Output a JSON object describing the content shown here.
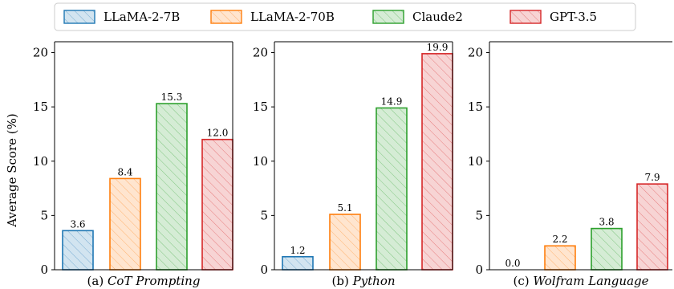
{
  "legend": {
    "placement": "top-center",
    "items": [
      {
        "label": "LLaMA-2-7B",
        "color": "#1f77b4"
      },
      {
        "label": "LLaMA-2-70B",
        "color": "#ff7f0e"
      },
      {
        "label": "Claude2",
        "color": "#2ca02c"
      },
      {
        "label": "GPT-3.5",
        "color": "#d62728"
      }
    ]
  },
  "ylabel": "Average Score (%)",
  "chart_data": [
    {
      "type": "bar",
      "title": "(a) CoT Prompting",
      "caption_prefix": "(a) ",
      "caption_italic": "CoT Prompting",
      "categories": [
        "LLaMA-2-7B",
        "LLaMA-2-70B",
        "Claude2",
        "GPT-3.5"
      ],
      "values": [
        3.6,
        8.4,
        15.3,
        12.0
      ],
      "value_labels": [
        "3.6",
        "8.4",
        "15.3",
        "12.0"
      ],
      "ylabel": "Average Score (%)",
      "ylim": [
        0,
        21
      ],
      "yticks": [
        "0",
        "5",
        "10",
        "15",
        "20"
      ],
      "grid": false
    },
    {
      "type": "bar",
      "title": "(b) Python",
      "caption_prefix": "(b) ",
      "caption_italic": "Python",
      "categories": [
        "LLaMA-2-7B",
        "LLaMA-2-70B",
        "Claude2",
        "GPT-3.5"
      ],
      "values": [
        1.2,
        5.1,
        14.9,
        19.9
      ],
      "value_labels": [
        "1.2",
        "5.1",
        "14.9",
        "19.9"
      ],
      "ylabel": "",
      "ylim": [
        0,
        21
      ],
      "yticks": [
        "0",
        "5",
        "10",
        "15",
        "20"
      ],
      "grid": false
    },
    {
      "type": "bar",
      "title": "(c) Wolfram Language",
      "caption_prefix": "(c) ",
      "caption_italic": "Wolfram Language",
      "categories": [
        "LLaMA-2-7B",
        "LLaMA-2-70B",
        "Claude2",
        "GPT-3.5"
      ],
      "values": [
        0.0,
        2.2,
        3.8,
        7.9
      ],
      "value_labels": [
        "0.0",
        "2.2",
        "3.8",
        "7.9"
      ],
      "ylabel": "",
      "ylim": [
        0,
        21
      ],
      "yticks": [
        "0",
        "5",
        "10",
        "15",
        "20"
      ],
      "grid": false
    }
  ]
}
